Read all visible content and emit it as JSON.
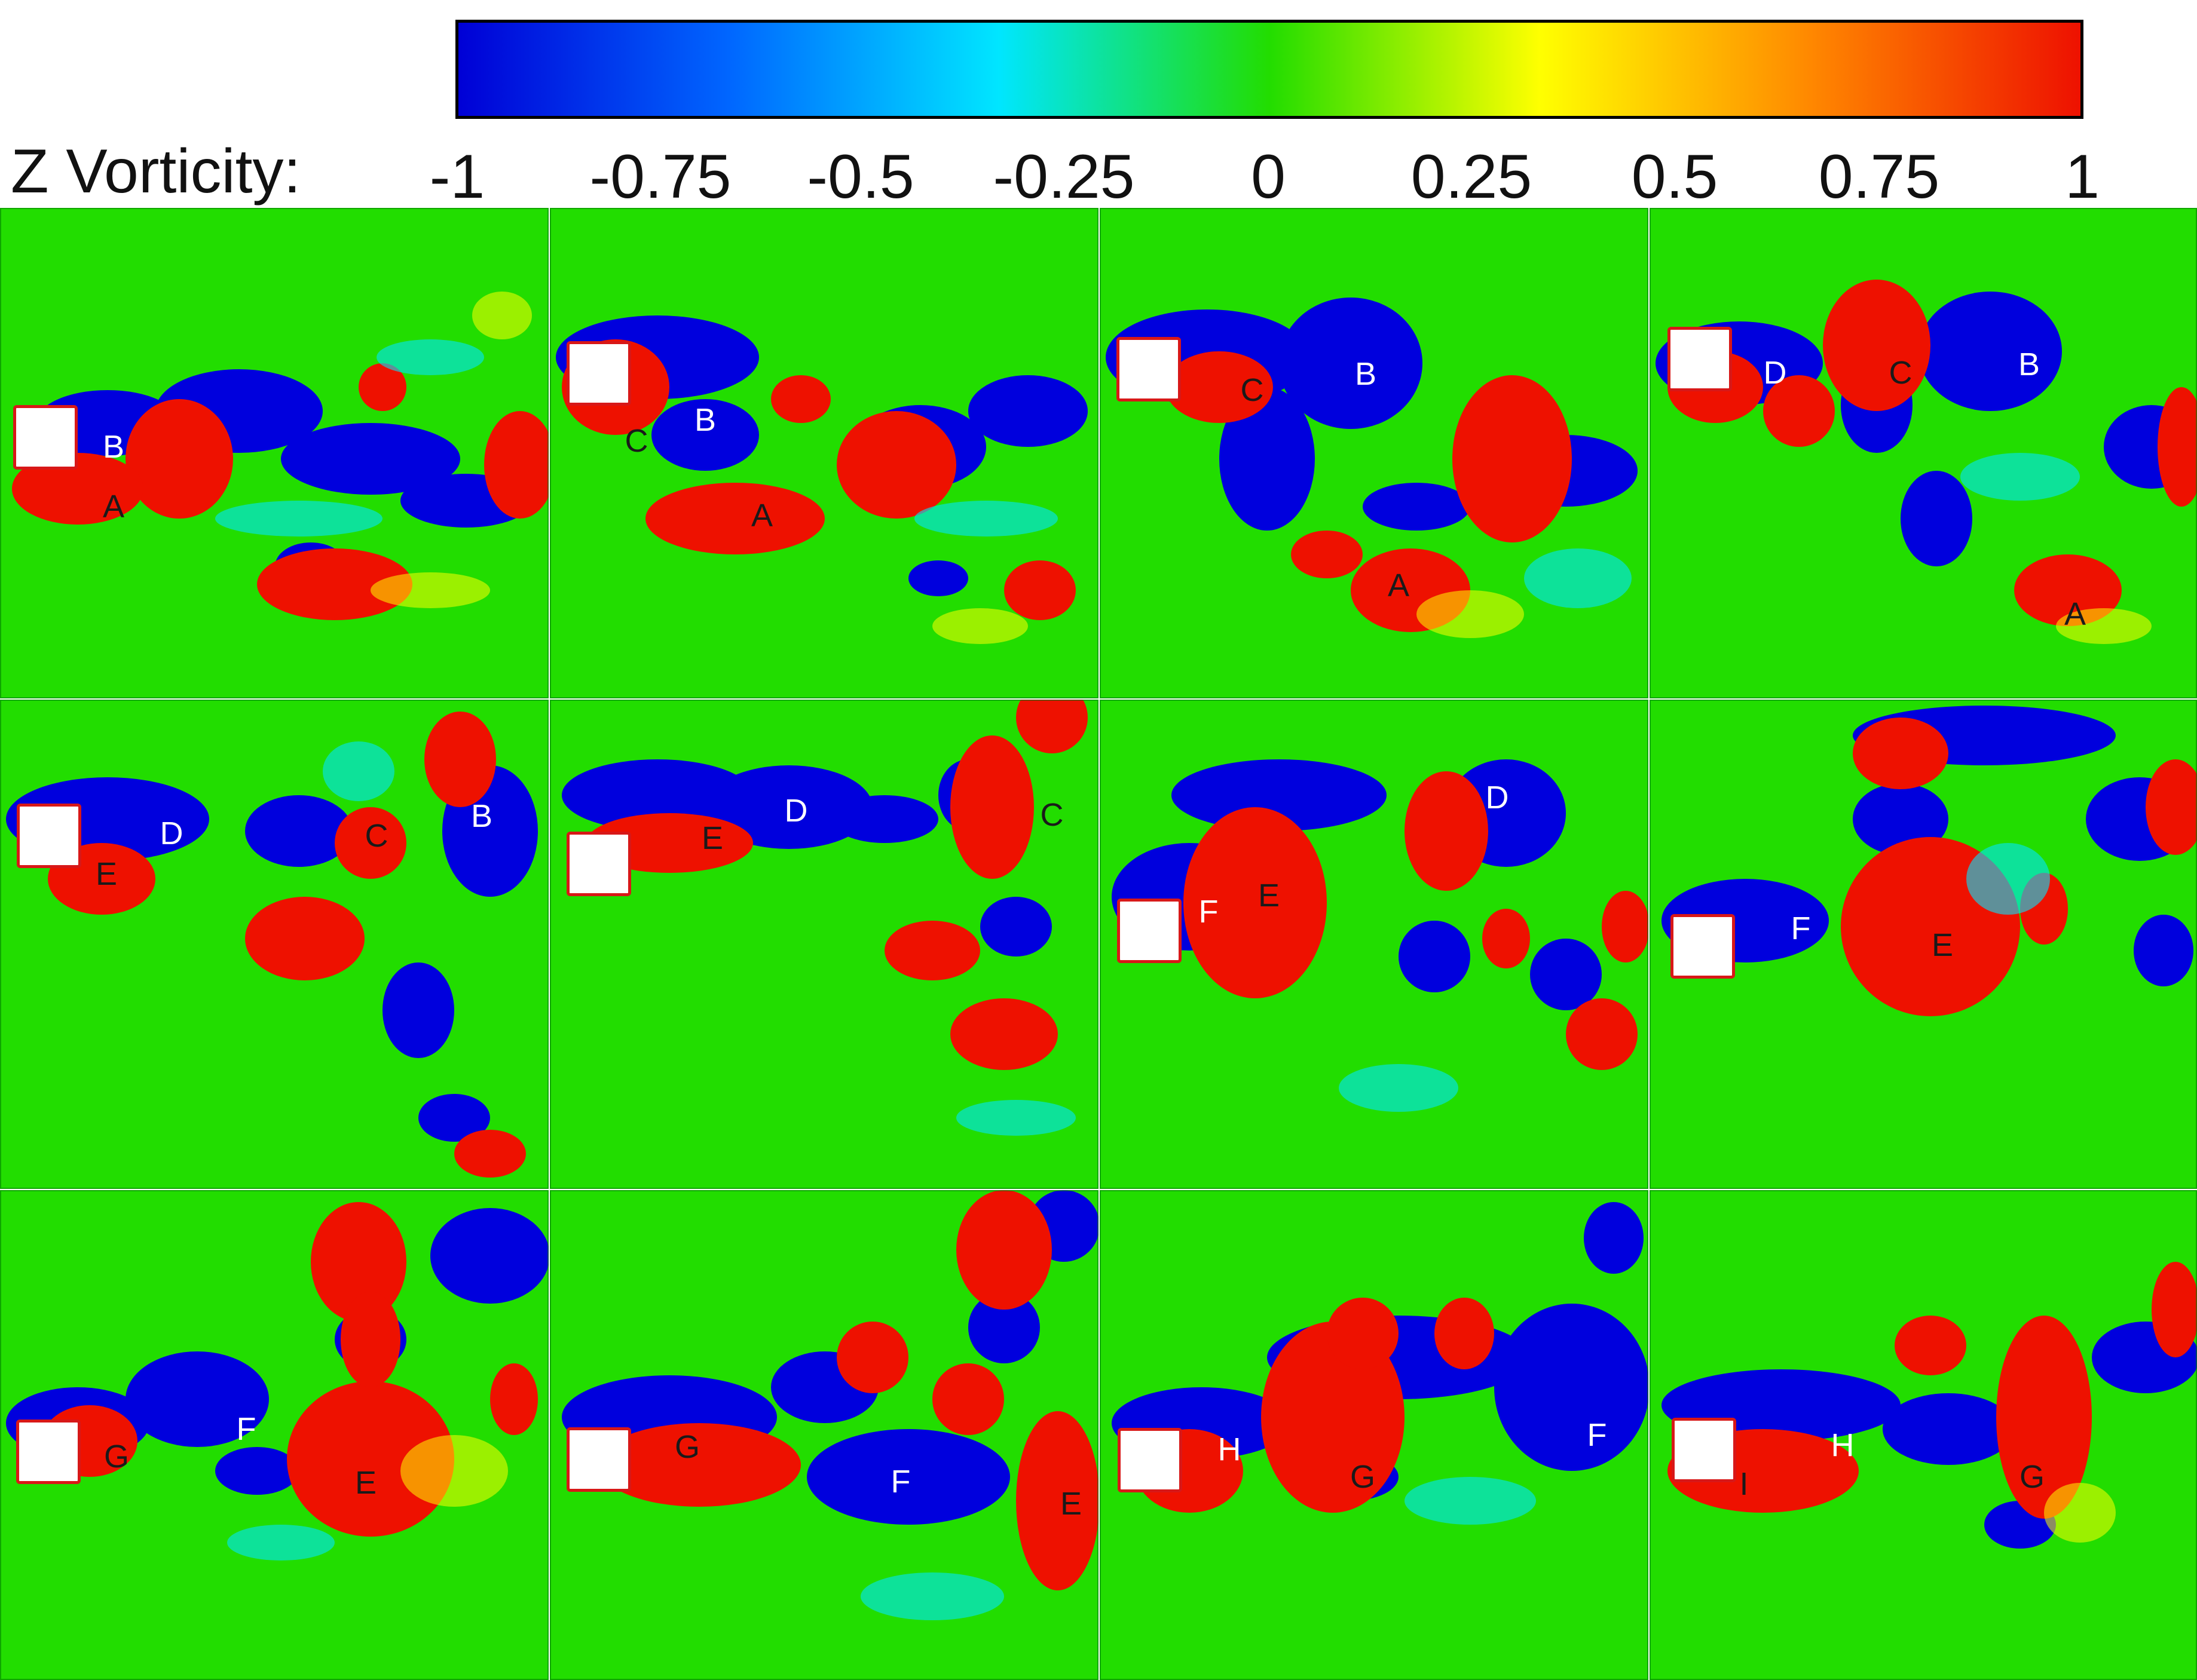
{
  "colorbar": {
    "title": "Z Vorticity:",
    "ticks": [
      "-1",
      "-0.75",
      "-0.5",
      "-0.25",
      "0",
      "0.25",
      "0.5",
      "0.75",
      "1"
    ],
    "range": [
      -1,
      1
    ],
    "colors": [
      "#0000d6",
      "#0066ff",
      "#00e6ff",
      "#22dd00",
      "#ffff00",
      "#ff8800",
      "#ee1100"
    ]
  },
  "panels": [
    {
      "cylinder": "rowA",
      "labels": [
        {
          "text": "B",
          "sign": "neg",
          "pos": "near-top"
        },
        {
          "text": "A",
          "sign": "pos",
          "pos": "near-bottom"
        }
      ]
    },
    {
      "cylinder": "rowA-up",
      "labels": [
        {
          "text": "C",
          "sign": "pos"
        },
        {
          "text": "B",
          "sign": "neg"
        },
        {
          "text": "A",
          "sign": "pos"
        }
      ]
    },
    {
      "cylinder": "rowA-up",
      "labels": [
        {
          "text": "C",
          "sign": "pos"
        },
        {
          "text": "B",
          "sign": "neg"
        },
        {
          "text": "A",
          "sign": "pos"
        }
      ]
    },
    {
      "cylinder": "rowA-up",
      "labels": [
        {
          "text": "D",
          "sign": "neg"
        },
        {
          "text": "C",
          "sign": "pos"
        },
        {
          "text": "B",
          "sign": "neg"
        },
        {
          "text": "A",
          "sign": "pos"
        }
      ]
    },
    {
      "cylinder": "rowB",
      "labels": [
        {
          "text": "D",
          "sign": "neg"
        },
        {
          "text": "E",
          "sign": "pos"
        },
        {
          "text": "C",
          "sign": "pos"
        },
        {
          "text": "B",
          "sign": "neg"
        }
      ]
    },
    {
      "cylinder": "rowB-low",
      "labels": [
        {
          "text": "D",
          "sign": "neg"
        },
        {
          "text": "E",
          "sign": "pos"
        },
        {
          "text": "C",
          "sign": "pos"
        }
      ]
    },
    {
      "cylinder": "rowB-low2",
      "labels": [
        {
          "text": "F",
          "sign": "neg"
        },
        {
          "text": "E",
          "sign": "pos"
        },
        {
          "text": "D",
          "sign": "neg"
        }
      ]
    },
    {
      "cylinder": "rowB-low2",
      "labels": [
        {
          "text": "F",
          "sign": "neg"
        },
        {
          "text": "E",
          "sign": "pos"
        }
      ]
    },
    {
      "cylinder": "rowC",
      "labels": [
        {
          "text": "G",
          "sign": "pos"
        },
        {
          "text": "F",
          "sign": "neg"
        },
        {
          "text": "E",
          "sign": "pos"
        }
      ]
    },
    {
      "cylinder": "rowC",
      "labels": [
        {
          "text": "G",
          "sign": "pos"
        },
        {
          "text": "F",
          "sign": "neg"
        },
        {
          "text": "E",
          "sign": "pos"
        }
      ]
    },
    {
      "cylinder": "rowC",
      "labels": [
        {
          "text": "H",
          "sign": "neg"
        },
        {
          "text": "G",
          "sign": "pos"
        },
        {
          "text": "F",
          "sign": "neg"
        }
      ]
    },
    {
      "cylinder": "rowC",
      "labels": [
        {
          "text": "H",
          "sign": "neg"
        },
        {
          "text": "I",
          "sign": "pos"
        },
        {
          "text": "G",
          "sign": "pos"
        }
      ]
    }
  ]
}
